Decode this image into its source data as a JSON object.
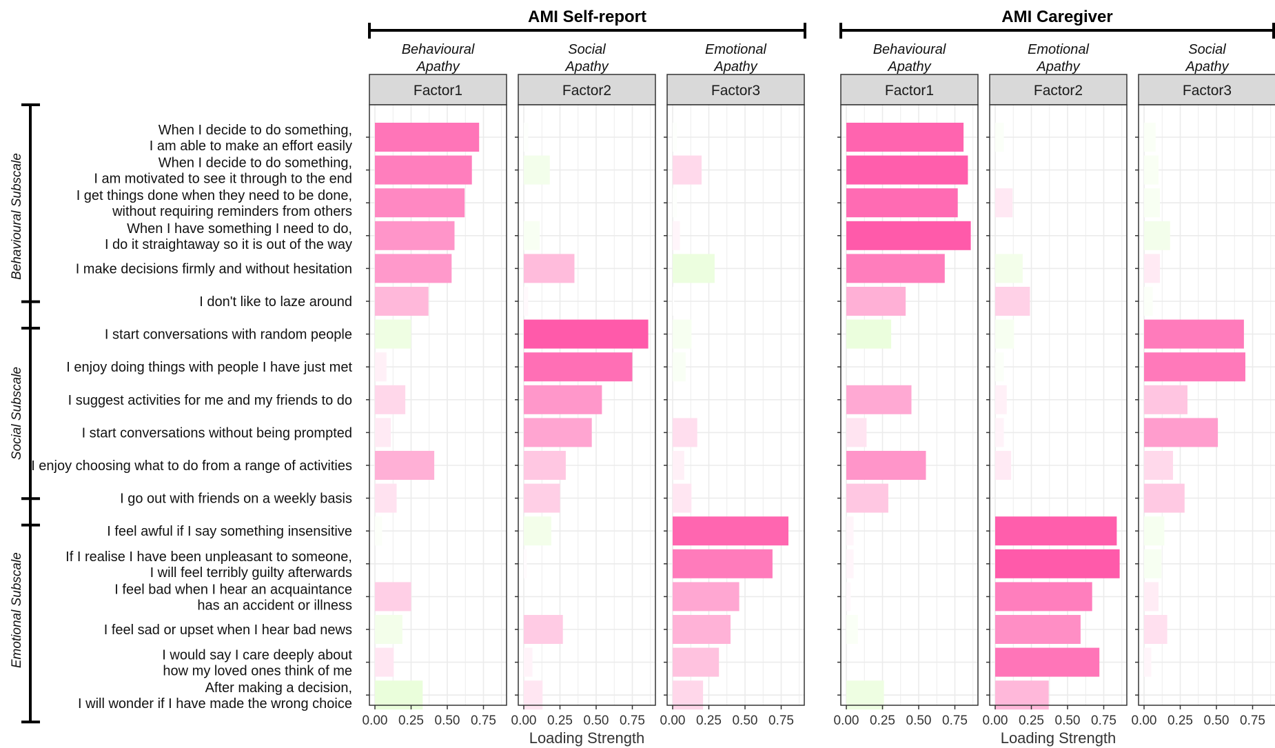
{
  "chart_data": {
    "type": "bar",
    "orientation": "horizontal",
    "xlabel": "Loading Strength",
    "xlim": [
      0,
      0.9
    ],
    "xticks": [
      "0.00",
      "0.25",
      "0.50",
      "0.75"
    ],
    "grid": true,
    "color_scale": {
      "low": "#c8fca0",
      "mid": "#ffffff",
      "high": "#ff5aaa"
    },
    "items": [
      [
        "When I decide to do something,",
        "I am able to make an effort easily"
      ],
      [
        "When I decide to do something,",
        "I am motivated to see it through to the end"
      ],
      [
        "I get things done when they need to be done,",
        "without requiring reminders from others"
      ],
      [
        "When I have something I need to do,",
        "I do it straightaway so it is out of the way"
      ],
      [
        "I make decisions firmly and without hesitation"
      ],
      [
        "I don't like to laze around"
      ],
      [
        "I start conversations with random people"
      ],
      [
        "I enjoy doing things with people I have just met"
      ],
      [
        "I suggest activities for me and my friends to do"
      ],
      [
        "I start conversations without being prompted"
      ],
      [
        "I enjoy choosing what to do from a range of activities"
      ],
      [
        "I go out with friends on a weekly basis"
      ],
      [
        "I feel awful if I say something insensitive"
      ],
      [
        "If I realise I have been unpleasant to someone,",
        "I will feel terribly guilty afterwards"
      ],
      [
        "I feel bad when I hear an acquaintance",
        "has an accident or illness"
      ],
      [
        "I feel sad or upset when I hear bad news"
      ],
      [
        "I would say I care deeply about",
        "how my loved ones think of me"
      ],
      [
        "After making a decision,",
        "I will wonder if I have made the wrong choice"
      ]
    ],
    "subscales": [
      {
        "label": "Behavioural Subscale",
        "from": 0,
        "to": 5
      },
      {
        "label": "Social Subscale",
        "from": 6,
        "to": 11
      },
      {
        "label": "Emotional Subscale",
        "from": 12,
        "to": 17
      }
    ],
    "groups": [
      {
        "title": "AMI Self-report",
        "facets": [
          {
            "strip": "Factor1",
            "factor_name": [
              "Behavioural",
              "Apathy"
            ],
            "values": [
              0.72,
              0.67,
              0.62,
              0.55,
              0.53,
              0.37,
              -0.25,
              0.08,
              0.21,
              0.11,
              0.41,
              0.15,
              -0.05,
              0.0,
              0.25,
              -0.19,
              0.13,
              -0.33
            ]
          },
          {
            "strip": "Factor2",
            "factor_name": [
              "Social",
              "Apathy"
            ],
            "values": [
              -0.03,
              -0.18,
              0.0,
              -0.11,
              0.35,
              0.03,
              0.86,
              0.75,
              0.54,
              0.47,
              0.29,
              0.25,
              -0.19,
              0.02,
              0.0,
              0.27,
              0.06,
              0.13
            ]
          },
          {
            "strip": "Factor3",
            "factor_name": [
              "Emotional",
              "Apathy"
            ],
            "values": [
              -0.03,
              0.2,
              -0.03,
              0.05,
              -0.29,
              -0.01,
              -0.13,
              -0.09,
              0.0,
              0.17,
              0.08,
              0.13,
              0.8,
              0.69,
              0.46,
              0.4,
              0.32,
              0.21
            ]
          }
        ]
      },
      {
        "title": "AMI Caregiver",
        "facets": [
          {
            "strip": "Factor1",
            "factor_name": [
              "Behavioural",
              "Apathy"
            ],
            "values": [
              0.81,
              0.84,
              0.77,
              0.86,
              0.68,
              0.41,
              -0.31,
              0.0,
              0.45,
              0.14,
              0.55,
              0.29,
              0.05,
              0.05,
              0.03,
              -0.08,
              0.0,
              -0.26
            ]
          },
          {
            "strip": "Factor2",
            "factor_name": [
              "Emotional",
              "Apathy"
            ],
            "values": [
              -0.06,
              0.0,
              0.12,
              0.0,
              -0.19,
              0.24,
              -0.13,
              -0.06,
              0.08,
              0.06,
              0.11,
              0.0,
              0.84,
              0.86,
              0.67,
              0.59,
              0.72,
              0.37
            ]
          },
          {
            "strip": "Factor3",
            "factor_name": [
              "Social",
              "Apathy"
            ],
            "values": [
              -0.08,
              -0.1,
              -0.11,
              -0.18,
              0.11,
              -0.06,
              0.69,
              0.7,
              0.3,
              0.51,
              0.2,
              0.28,
              -0.14,
              -0.12,
              0.1,
              0.16,
              0.05,
              0.0
            ]
          }
        ]
      }
    ]
  }
}
